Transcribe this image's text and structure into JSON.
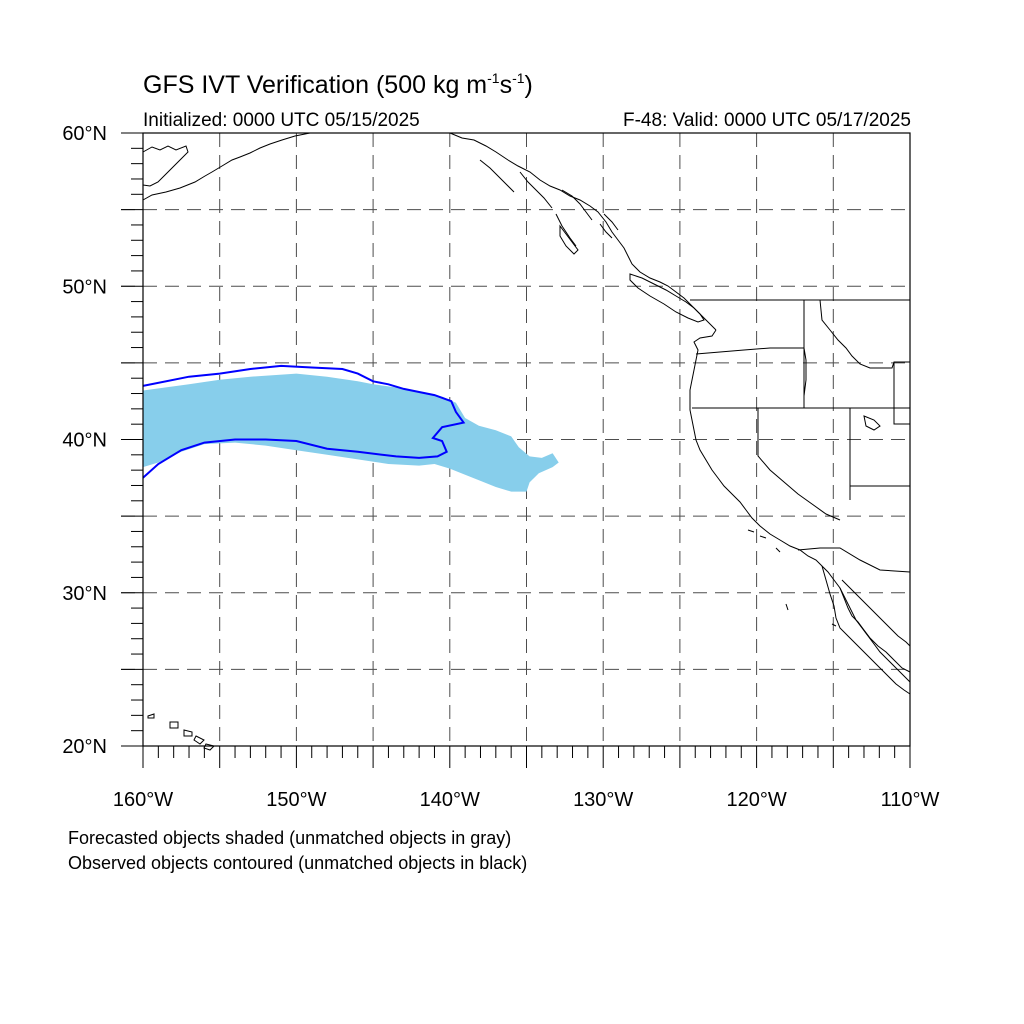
{
  "title": {
    "text": "GFS IVT Verification (500 kg m",
    "sup1": "-1",
    "mid": "s",
    "sup2": "-1",
    "end": ")"
  },
  "initialized": "Initialized: 0000 UTC 05/15/2025",
  "valid": "F-48: Valid: 0000 UTC 05/17/2025",
  "map": {
    "lon_range": [
      -160,
      -110
    ],
    "lat_range": [
      20,
      60
    ],
    "lat_labels": [
      {
        "value": 60,
        "text": "60°N"
      },
      {
        "value": 50,
        "text": "50°N"
      },
      {
        "value": 40,
        "text": "40°N"
      },
      {
        "value": 30,
        "text": "30°N"
      },
      {
        "value": 20,
        "text": "20°N"
      }
    ],
    "lon_labels": [
      {
        "value": -160,
        "text": "160°W"
      },
      {
        "value": -150,
        "text": "150°W"
      },
      {
        "value": -140,
        "text": "140°W"
      },
      {
        "value": -130,
        "text": "130°W"
      },
      {
        "value": -120,
        "text": "120°W"
      },
      {
        "value": -110,
        "text": "110°W"
      }
    ],
    "grid_lons": [
      -155,
      -150,
      -145,
      -140,
      -135,
      -130,
      -125,
      -120,
      -115
    ],
    "grid_lats": [
      55,
      50,
      45,
      40,
      35,
      30,
      25
    ],
    "colors": {
      "forecast_fill": "#87ceeb",
      "observed_contour": "#0000ff",
      "coast": "#000000",
      "grid": "#4d4d4d"
    },
    "forecast_object": [
      [
        -160,
        43.2
      ],
      [
        -157,
        43.6
      ],
      [
        -155,
        43.9
      ],
      [
        -153,
        44.1
      ],
      [
        -150,
        44.3
      ],
      [
        -148,
        44.1
      ],
      [
        -146,
        43.8
      ],
      [
        -145,
        43.6
      ],
      [
        -143.5,
        43.4
      ],
      [
        -142,
        43.1
      ],
      [
        -140.5,
        42.8
      ],
      [
        -139.6,
        42.4
      ],
      [
        -139.3,
        41.9
      ],
      [
        -139.0,
        41.4
      ],
      [
        -138.1,
        40.9
      ],
      [
        -137,
        40.6
      ],
      [
        -136,
        40.2
      ],
      [
        -135.5,
        39.5
      ],
      [
        -134.8,
        38.9
      ],
      [
        -134,
        38.8
      ],
      [
        -133.3,
        39.1
      ],
      [
        -132.9,
        38.5
      ],
      [
        -133.3,
        38.2
      ],
      [
        -134.2,
        37.8
      ],
      [
        -134.8,
        37.2
      ],
      [
        -135,
        36.6
      ],
      [
        -136,
        36.6
      ],
      [
        -137,
        36.9
      ],
      [
        -138,
        37.3
      ],
      [
        -139,
        37.7
      ],
      [
        -140,
        38.1
      ],
      [
        -141,
        38.4
      ],
      [
        -142,
        38.3
      ],
      [
        -144,
        38.4
      ],
      [
        -146,
        38.7
      ],
      [
        -148,
        39.0
      ],
      [
        -150,
        39.3
      ],
      [
        -152,
        39.6
      ],
      [
        -154,
        39.8
      ],
      [
        -156,
        39.7
      ],
      [
        -157.5,
        39.2
      ],
      [
        -159,
        38.5
      ],
      [
        -160,
        38.2
      ]
    ],
    "observed_object": [
      [
        -160,
        43.5
      ],
      [
        -157,
        44.1
      ],
      [
        -155,
        44.3
      ],
      [
        -153,
        44.6
      ],
      [
        -151,
        44.8
      ],
      [
        -149,
        44.7
      ],
      [
        -147,
        44.6
      ],
      [
        -146,
        44.3
      ],
      [
        -145,
        43.8
      ],
      [
        -144,
        43.6
      ],
      [
        -143,
        43.3
      ],
      [
        -142,
        43.1
      ],
      [
        -141,
        42.9
      ],
      [
        -139.9,
        42.5
      ],
      [
        -139.6,
        41.8
      ],
      [
        -139.1,
        41.1
      ],
      [
        -140.5,
        40.8
      ],
      [
        -141.1,
        40.1
      ],
      [
        -140.5,
        39.9
      ],
      [
        -140.2,
        39.2
      ],
      [
        -140.8,
        38.9
      ],
      [
        -142,
        38.8
      ],
      [
        -143.5,
        38.9
      ],
      [
        -146,
        39.2
      ],
      [
        -148,
        39.4
      ],
      [
        -150,
        39.9
      ],
      [
        -152,
        40.0
      ],
      [
        -154,
        40.0
      ],
      [
        -156,
        39.8
      ],
      [
        -157.5,
        39.3
      ],
      [
        -159,
        38.4
      ],
      [
        -160,
        37.5
      ]
    ]
  },
  "legend_notes": [
    "Forecasted objects shaded (unmatched objects in gray)",
    "Observed objects contoured (unmatched objects in black)"
  ]
}
